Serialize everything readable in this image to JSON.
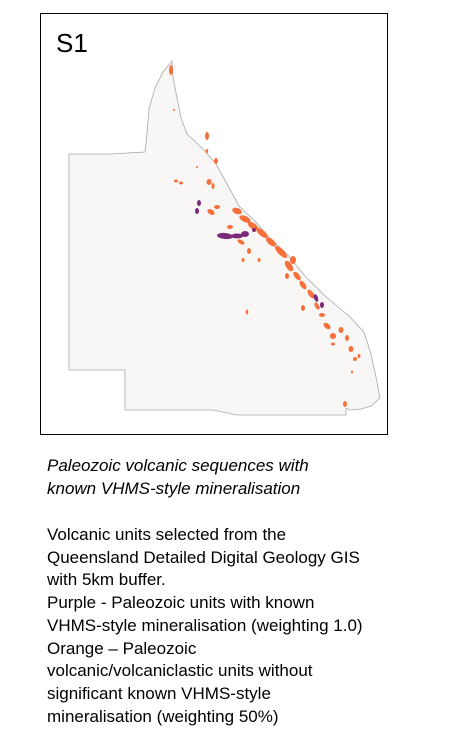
{
  "map": {
    "panel_label": "S1",
    "colors": {
      "land": "#f8f7f6",
      "outline": "#a8a8a8",
      "purple": "#7a2a78",
      "orange": "#f7703c"
    }
  },
  "caption": {
    "title_lines": [
      "Paleozoic volcanic sequences with",
      "known VHMS-style mineralisation"
    ],
    "body_lines": [
      "Volcanic units selected from the",
      "Queensland Detailed Digital Geology GIS",
      "with 5km buffer.",
      "Purple - Paleozoic units with known",
      "VHMS-style mineralisation (weighting 1.0)",
      "Orange – Paleozoic",
      "volcanic/volcaniclastic units without",
      "significant  known VHMS-style",
      "mineralisation (weighting 50%)"
    ]
  }
}
